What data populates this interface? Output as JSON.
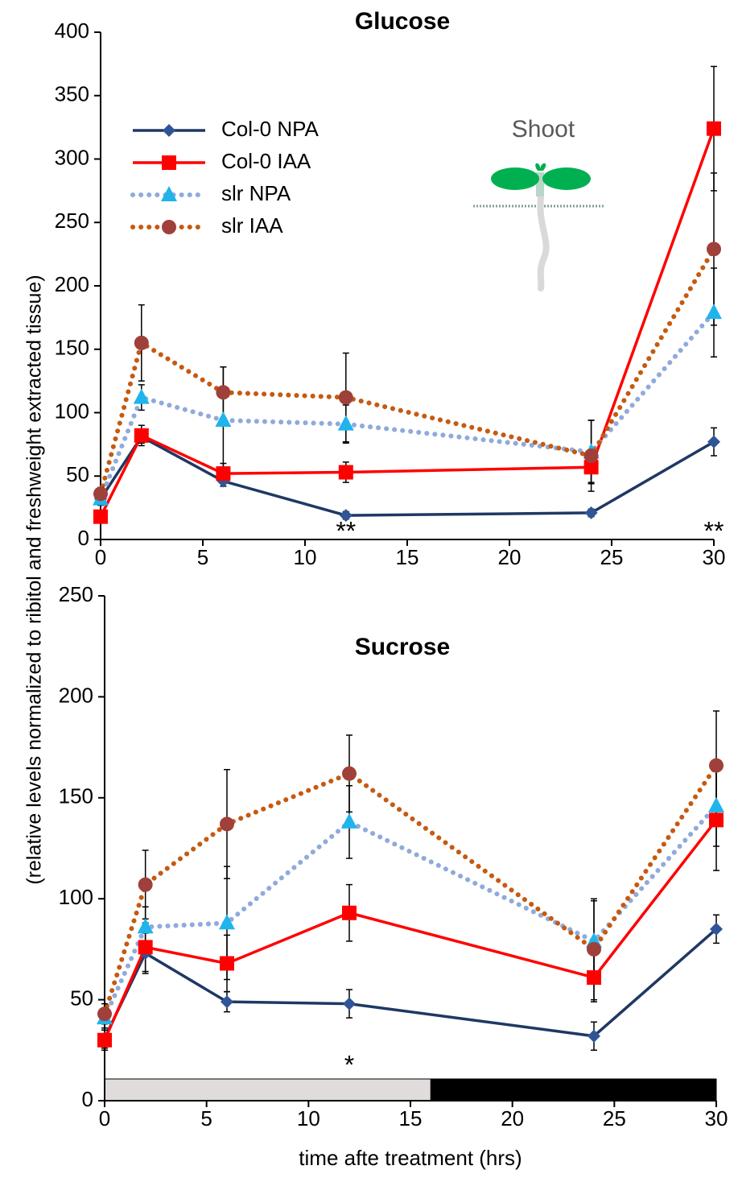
{
  "chart_data": [
    {
      "type": "line",
      "title": "Glucose",
      "ylabel": "(relative levels normalized to ribitol and freshweight extracted tissue)",
      "x": [
        0,
        2,
        6,
        12,
        24,
        30
      ],
      "xlim": [
        0,
        30
      ],
      "xticks": [
        0,
        5,
        10,
        15,
        20,
        25,
        30
      ],
      "ylim": [
        0,
        400
      ],
      "yticks": [
        0,
        50,
        100,
        150,
        200,
        250,
        300,
        350,
        400
      ],
      "legend": "upper left",
      "inset_label": "Shoot",
      "annotations": [
        {
          "text": "**",
          "x": 12
        },
        {
          "text": "**",
          "x": 30
        }
      ],
      "series": [
        {
          "name": "Col-0 NPA",
          "color": "#1f3864",
          "marker_color": "#2f5597",
          "marker": "diamond",
          "dash": "solid",
          "values": [
            32,
            81,
            46,
            19,
            21,
            77
          ],
          "errors": [
            3,
            5,
            4,
            3,
            3,
            11
          ]
        },
        {
          "name": "Col-0 IAA",
          "color": "#ff0000",
          "marker_color": "#ff0000",
          "marker": "square",
          "dash": "solid",
          "values": [
            18,
            82,
            52,
            53,
            57,
            324
          ],
          "errors": [
            3,
            8,
            8,
            8,
            12,
            49
          ]
        },
        {
          "name": "slr NPA",
          "color": "#8faadc",
          "marker_color": "#1fb4ec",
          "marker": "triangle",
          "dash": "dotted",
          "values": [
            32,
            112,
            94,
            91,
            69,
            179
          ],
          "errors": [
            5,
            10,
            42,
            15,
            25,
            35
          ]
        },
        {
          "name": "slr IAA",
          "color": "#c55a11",
          "marker_color": "#a0403a",
          "marker": "circle",
          "dash": "dotted",
          "values": [
            36,
            155,
            116,
            112,
            66,
            229
          ],
          "errors": [
            5,
            30,
            20,
            35,
            28,
            60
          ]
        }
      ]
    },
    {
      "type": "line",
      "title": "Sucrose",
      "xlabel": "time afte treatment (hrs)",
      "x": [
        0,
        2,
        6,
        12,
        24,
        30
      ],
      "xlim": [
        0,
        30
      ],
      "xticks": [
        0,
        5,
        10,
        15,
        20,
        25,
        30
      ],
      "ylim": [
        0,
        250
      ],
      "yticks": [
        0,
        50,
        100,
        150,
        200,
        250
      ],
      "annotations": [
        {
          "text": "*",
          "x": 12
        }
      ],
      "photoperiod": [
        {
          "start": 0,
          "end": 16,
          "color": "#e0dcdc"
        },
        {
          "start": 16,
          "end": 30,
          "color": "#000000"
        }
      ],
      "series": [
        {
          "color": "#1f3864",
          "marker_color": "#2f5597",
          "marker": "diamond",
          "dash": "solid",
          "values": [
            31,
            73,
            49,
            48,
            32,
            85
          ],
          "errors": [
            5,
            10,
            5,
            7,
            7,
            7
          ]
        },
        {
          "color": "#ff0000",
          "marker_color": "#ff0000",
          "marker": "square",
          "dash": "solid",
          "values": [
            30,
            76,
            68,
            93,
            61,
            139
          ],
          "errors": [
            5,
            12,
            14,
            14,
            12,
            25
          ]
        },
        {
          "color": "#8faadc",
          "marker_color": "#1fb4ec",
          "marker": "triangle",
          "dash": "dotted",
          "values": [
            41,
            86,
            88,
            138,
            79,
            146
          ],
          "errors": [
            5,
            10,
            28,
            18,
            20,
            20
          ]
        },
        {
          "color": "#c55a11",
          "marker_color": "#a0403a",
          "marker": "circle",
          "dash": "dotted",
          "values": [
            43,
            107,
            137,
            162,
            75,
            166
          ],
          "errors": [
            5,
            17,
            27,
            19,
            25,
            27
          ]
        }
      ]
    }
  ]
}
